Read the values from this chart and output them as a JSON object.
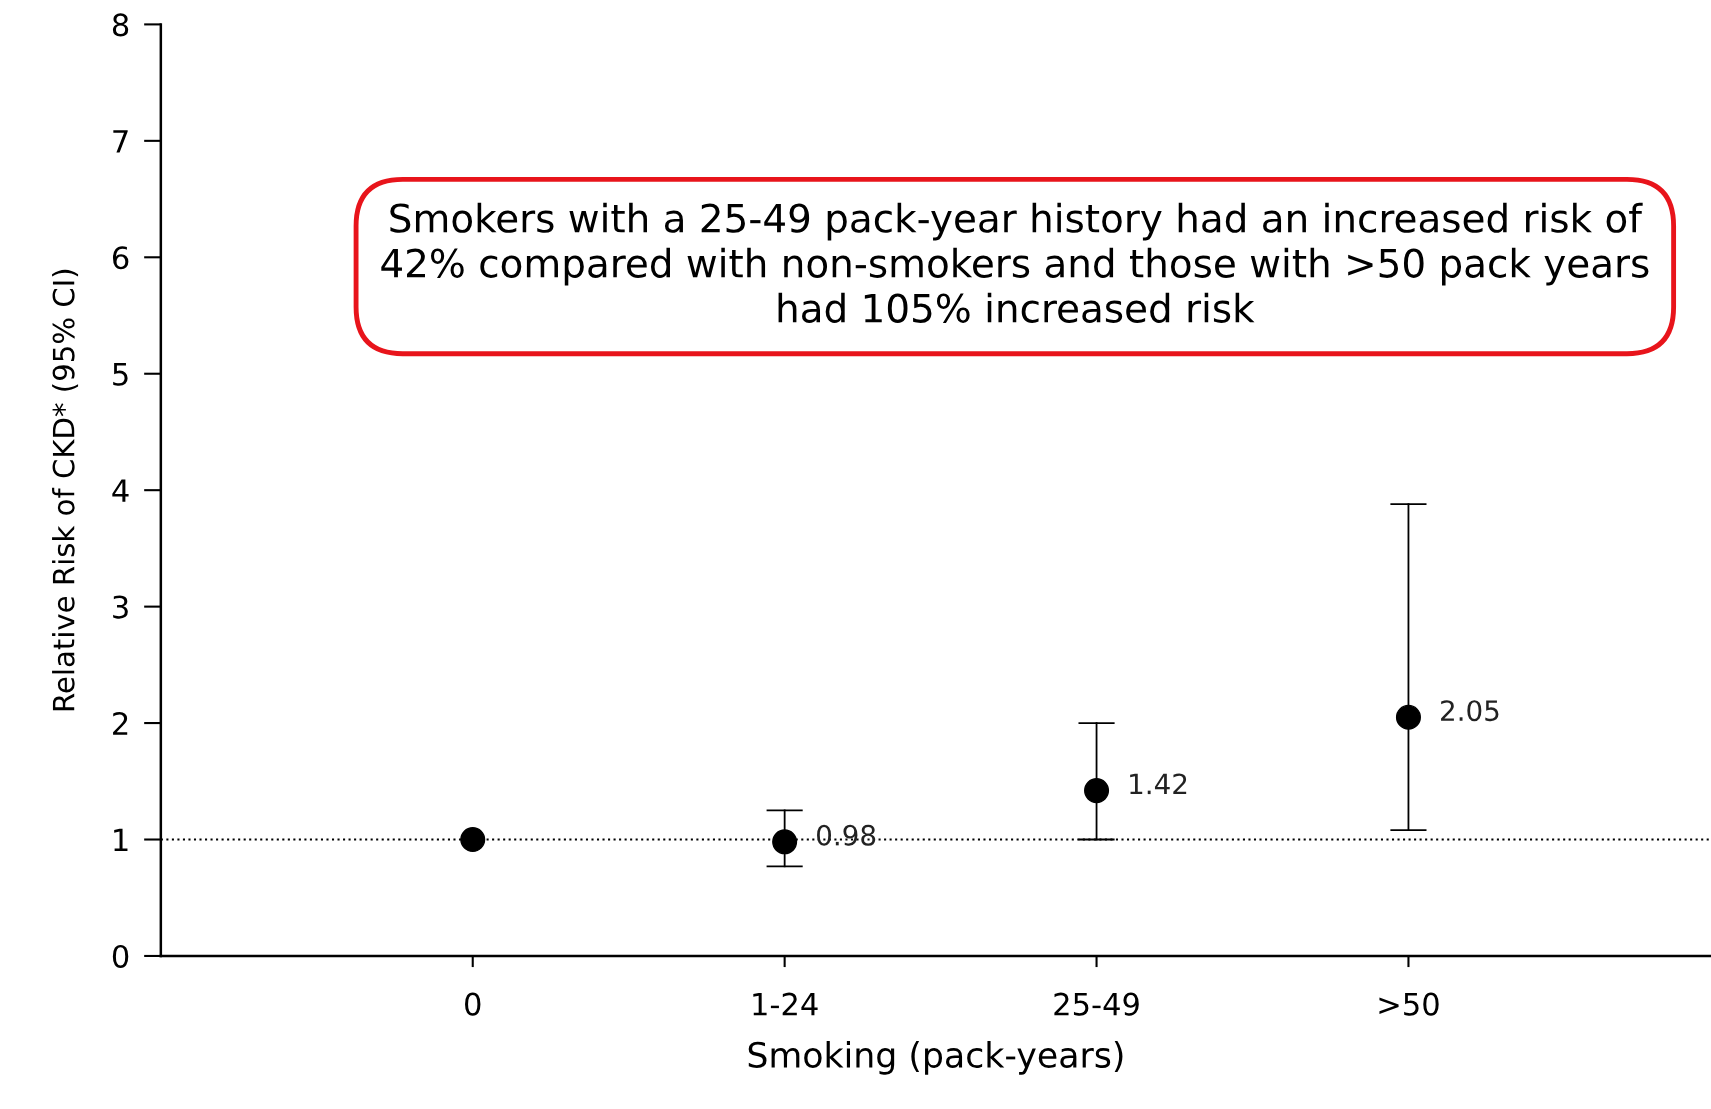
{
  "chart_data": {
    "type": "scatter",
    "xlabel": "Smoking (pack-years)",
    "ylabel": "Relative Risk of CKD* (95% CI)",
    "categories": [
      "0",
      "1-24",
      "25-49",
      ">50"
    ],
    "series": [
      {
        "color": "#000000",
        "values": [
          1,
          0.98,
          1.42,
          2.05
        ],
        "errors": [
          null,
          [
            0.77,
            1.25
          ],
          [
            1.0,
            2.0
          ],
          [
            1.08,
            3.88
          ]
        ],
        "value_labels": [
          null,
          "0.98",
          "1.42",
          "2.05"
        ]
      }
    ],
    "ylim": [
      0,
      8
    ],
    "yticks": [
      0,
      1,
      2,
      3,
      4,
      5,
      6,
      7,
      8
    ],
    "marker": "circle",
    "grid": false,
    "legend": false,
    "ref_lines": [
      {
        "axis": "y",
        "value": 1,
        "line_style": "dotted",
        "color": "#000000"
      }
    ],
    "annotations": [
      "Smokers with a 25-49 pack-year history had an increased risk of 42% compared with non-smokers and those with >50 pack years had 105% increased risk"
    ]
  }
}
